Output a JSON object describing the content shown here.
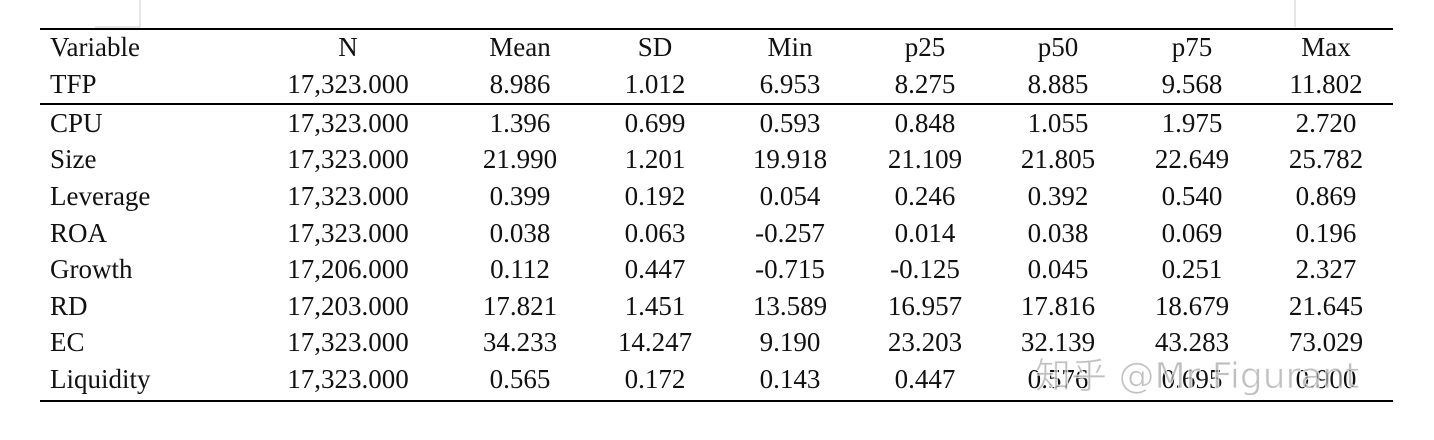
{
  "table": {
    "header": [
      "Variable",
      "N",
      "Mean",
      "SD",
      "Min",
      "p25",
      "p50",
      "p75",
      "Max"
    ],
    "rows": [
      [
        "TFP",
        "17,323.000",
        "8.986",
        "1.012",
        "6.953",
        "8.275",
        "8.885",
        "9.568",
        "11.802"
      ],
      [
        "CPU",
        "17,323.000",
        "1.396",
        "0.699",
        "0.593",
        "0.848",
        "1.055",
        "1.975",
        "2.720"
      ],
      [
        "Size",
        "17,323.000",
        "21.990",
        "1.201",
        "19.918",
        "21.109",
        "21.805",
        "22.649",
        "25.782"
      ],
      [
        "Leverage",
        "17,323.000",
        "0.399",
        "0.192",
        "0.054",
        "0.246",
        "0.392",
        "0.540",
        "0.869"
      ],
      [
        "ROA",
        "17,323.000",
        "0.038",
        "0.063",
        "-0.257",
        "0.014",
        "0.038",
        "0.069",
        "0.196"
      ],
      [
        "Growth",
        "17,206.000",
        "0.112",
        "0.447",
        "-0.715",
        "-0.125",
        "0.045",
        "0.251",
        "2.327"
      ],
      [
        "RD",
        "17,203.000",
        "17.821",
        "1.451",
        "13.589",
        "16.957",
        "17.816",
        "18.679",
        "21.645"
      ],
      [
        "EC",
        "17,323.000",
        "34.233",
        "14.247",
        "9.190",
        "23.203",
        "32.139",
        "43.283",
        "73.029"
      ],
      [
        "Liquidity",
        "17,323.000",
        "0.565",
        "0.172",
        "0.143",
        "0.447",
        "0.576",
        "0.695",
        "0.900"
      ]
    ]
  },
  "watermark": "知乎 @Mr Figurant"
}
